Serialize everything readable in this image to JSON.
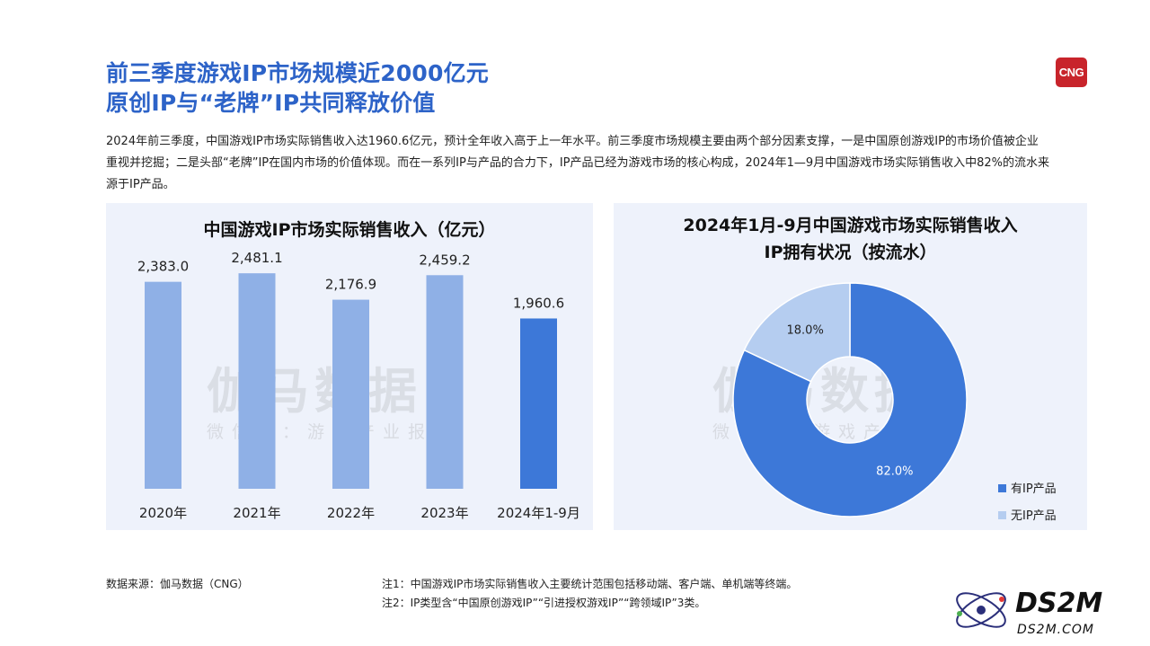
{
  "header": {
    "title_line1": "前三季度游戏IP市场规模近2000亿元",
    "title_line2": "原创IP与“老牌”IP共同释放价值",
    "logo_text": "CNG"
  },
  "intro": "2024年前三季度，中国游戏IP市场实际销售收入达1960.6亿元，预计全年收入高于上一年水平。前三季度市场规模主要由两个部分因素支撑，一是中国原创游戏IP的市场价值被企业重视并挖掘；二是头部“老牌”IP在国内市场的价值体现。而在一系列IP与产品的合力下，IP产品已经为游戏市场的核心构成，2024年1—9月中国游戏市场实际销售收入中82%的流水来源于IP产品。",
  "watermark": {
    "main": "伽马数据",
    "sub": "微信号：游戏产业报告"
  },
  "chart_data": [
    {
      "type": "bar",
      "title": "中国游戏IP市场实际销售收入（亿元）",
      "categories": [
        "2020年",
        "2021年",
        "2022年",
        "2023年",
        "2024年1-9月"
      ],
      "values": [
        2383.0,
        2481.1,
        2176.9,
        2459.2,
        1960.6
      ],
      "value_labels": [
        "2,383.0",
        "2,481.1",
        "2,176.9",
        "2,459.2",
        "1,960.6"
      ],
      "colors": [
        "#8fb0e6",
        "#8fb0e6",
        "#8fb0e6",
        "#8fb0e6",
        "#3d78d8"
      ],
      "ylim": [
        0,
        3000
      ],
      "grid": false
    },
    {
      "type": "pie",
      "title_line1": "2024年1月-9月中国游戏市场实际销售收入",
      "title_line2": "IP拥有状况（按流水）",
      "slices": [
        {
          "label": "有IP产品",
          "value": 82.0,
          "value_label": "82.0%",
          "color": "#3d78d8"
        },
        {
          "label": "无IP产品",
          "value": 18.0,
          "value_label": "18.0%",
          "color": "#b5cdf0"
        }
      ],
      "legend_position": "bottom-right"
    }
  ],
  "footer": {
    "source": "数据来源：伽马数据（CNG）",
    "note1": "注1：中国游戏IP市场实际销售收入主要统计范围包括移动端、客户端、单机端等终端。",
    "note2": "注2：IP类型含“中国原创游戏IP”“引进授权游戏IP”“跨领域IP”3类。"
  },
  "brand": {
    "name": "DS2M",
    "url": "DS2M.COM"
  }
}
